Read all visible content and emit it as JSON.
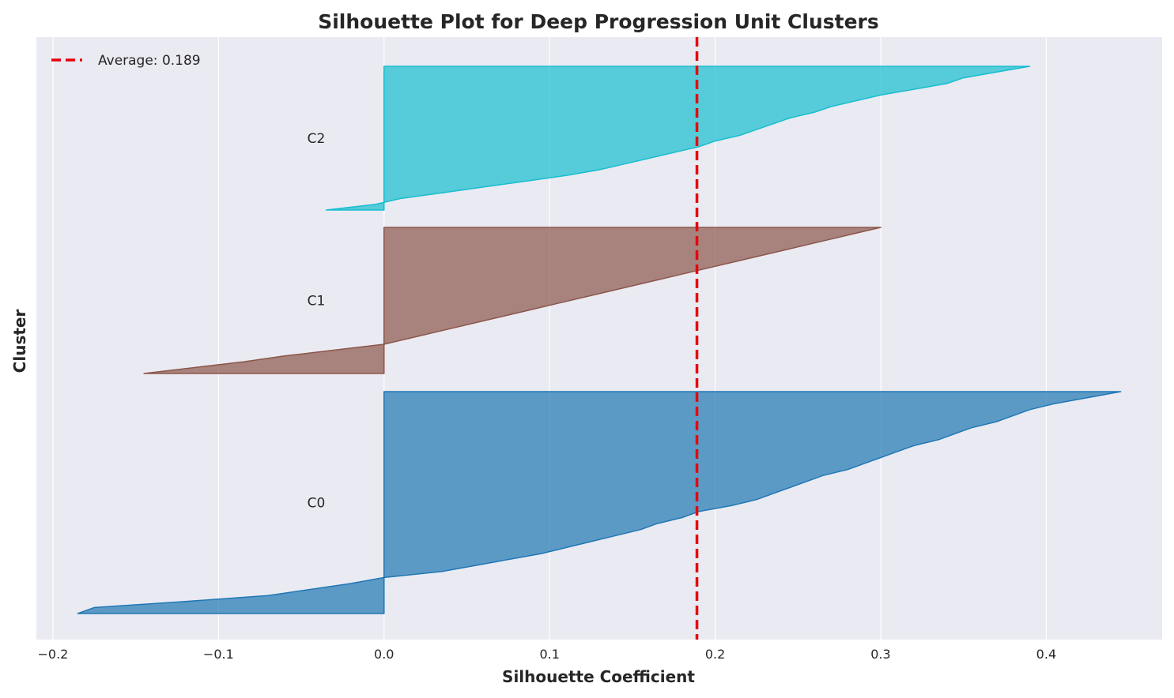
{
  "chart_data": {
    "type": "area",
    "title": "Silhouette Plot for Deep Progression Unit Clusters",
    "xlabel": "Silhouette Coefficient",
    "ylabel": "Cluster",
    "xlim": [
      -0.21,
      0.47
    ],
    "x_ticks": [
      -0.2,
      -0.1,
      0.0,
      0.1,
      0.2,
      0.3,
      0.4
    ],
    "x_tick_labels": [
      "−0.2",
      "−0.1",
      "0.0",
      "0.1",
      "0.2",
      "0.3",
      "0.4"
    ],
    "grid": true,
    "legend": {
      "placement": "top-left",
      "entries": [
        "Average: 0.189"
      ]
    },
    "average": {
      "value": 0.189,
      "label": "Average: 0.189",
      "color": "#e8000b"
    },
    "clusters": [
      {
        "name": "C0",
        "color": "#1f77b4",
        "values": [
          0.445,
          0.425,
          0.405,
          0.39,
          0.38,
          0.37,
          0.355,
          0.345,
          0.335,
          0.32,
          0.31,
          0.3,
          0.29,
          0.28,
          0.265,
          0.255,
          0.245,
          0.235,
          0.225,
          0.21,
          0.19,
          0.18,
          0.165,
          0.155,
          0.14,
          0.125,
          0.11,
          0.095,
          0.075,
          0.055,
          0.035,
          0.0,
          -0.02,
          -0.045,
          -0.07,
          -0.12,
          -0.175,
          -0.185
        ]
      },
      {
        "name": "C1",
        "color": "#8c564b",
        "values": [
          0.3,
          0.285,
          0.27,
          0.255,
          0.24,
          0.225,
          0.21,
          0.195,
          0.18,
          0.165,
          0.15,
          0.135,
          0.12,
          0.105,
          0.09,
          0.075,
          0.06,
          0.045,
          0.03,
          0.015,
          0.0,
          -0.03,
          -0.06,
          -0.085,
          -0.115,
          -0.145
        ]
      },
      {
        "name": "C2",
        "color": "#17becf",
        "values": [
          0.39,
          0.37,
          0.35,
          0.34,
          0.32,
          0.3,
          0.285,
          0.27,
          0.26,
          0.245,
          0.235,
          0.225,
          0.215,
          0.2,
          0.19,
          0.175,
          0.16,
          0.145,
          0.13,
          0.11,
          0.085,
          0.06,
          0.035,
          0.01,
          -0.005,
          -0.035
        ]
      }
    ]
  }
}
